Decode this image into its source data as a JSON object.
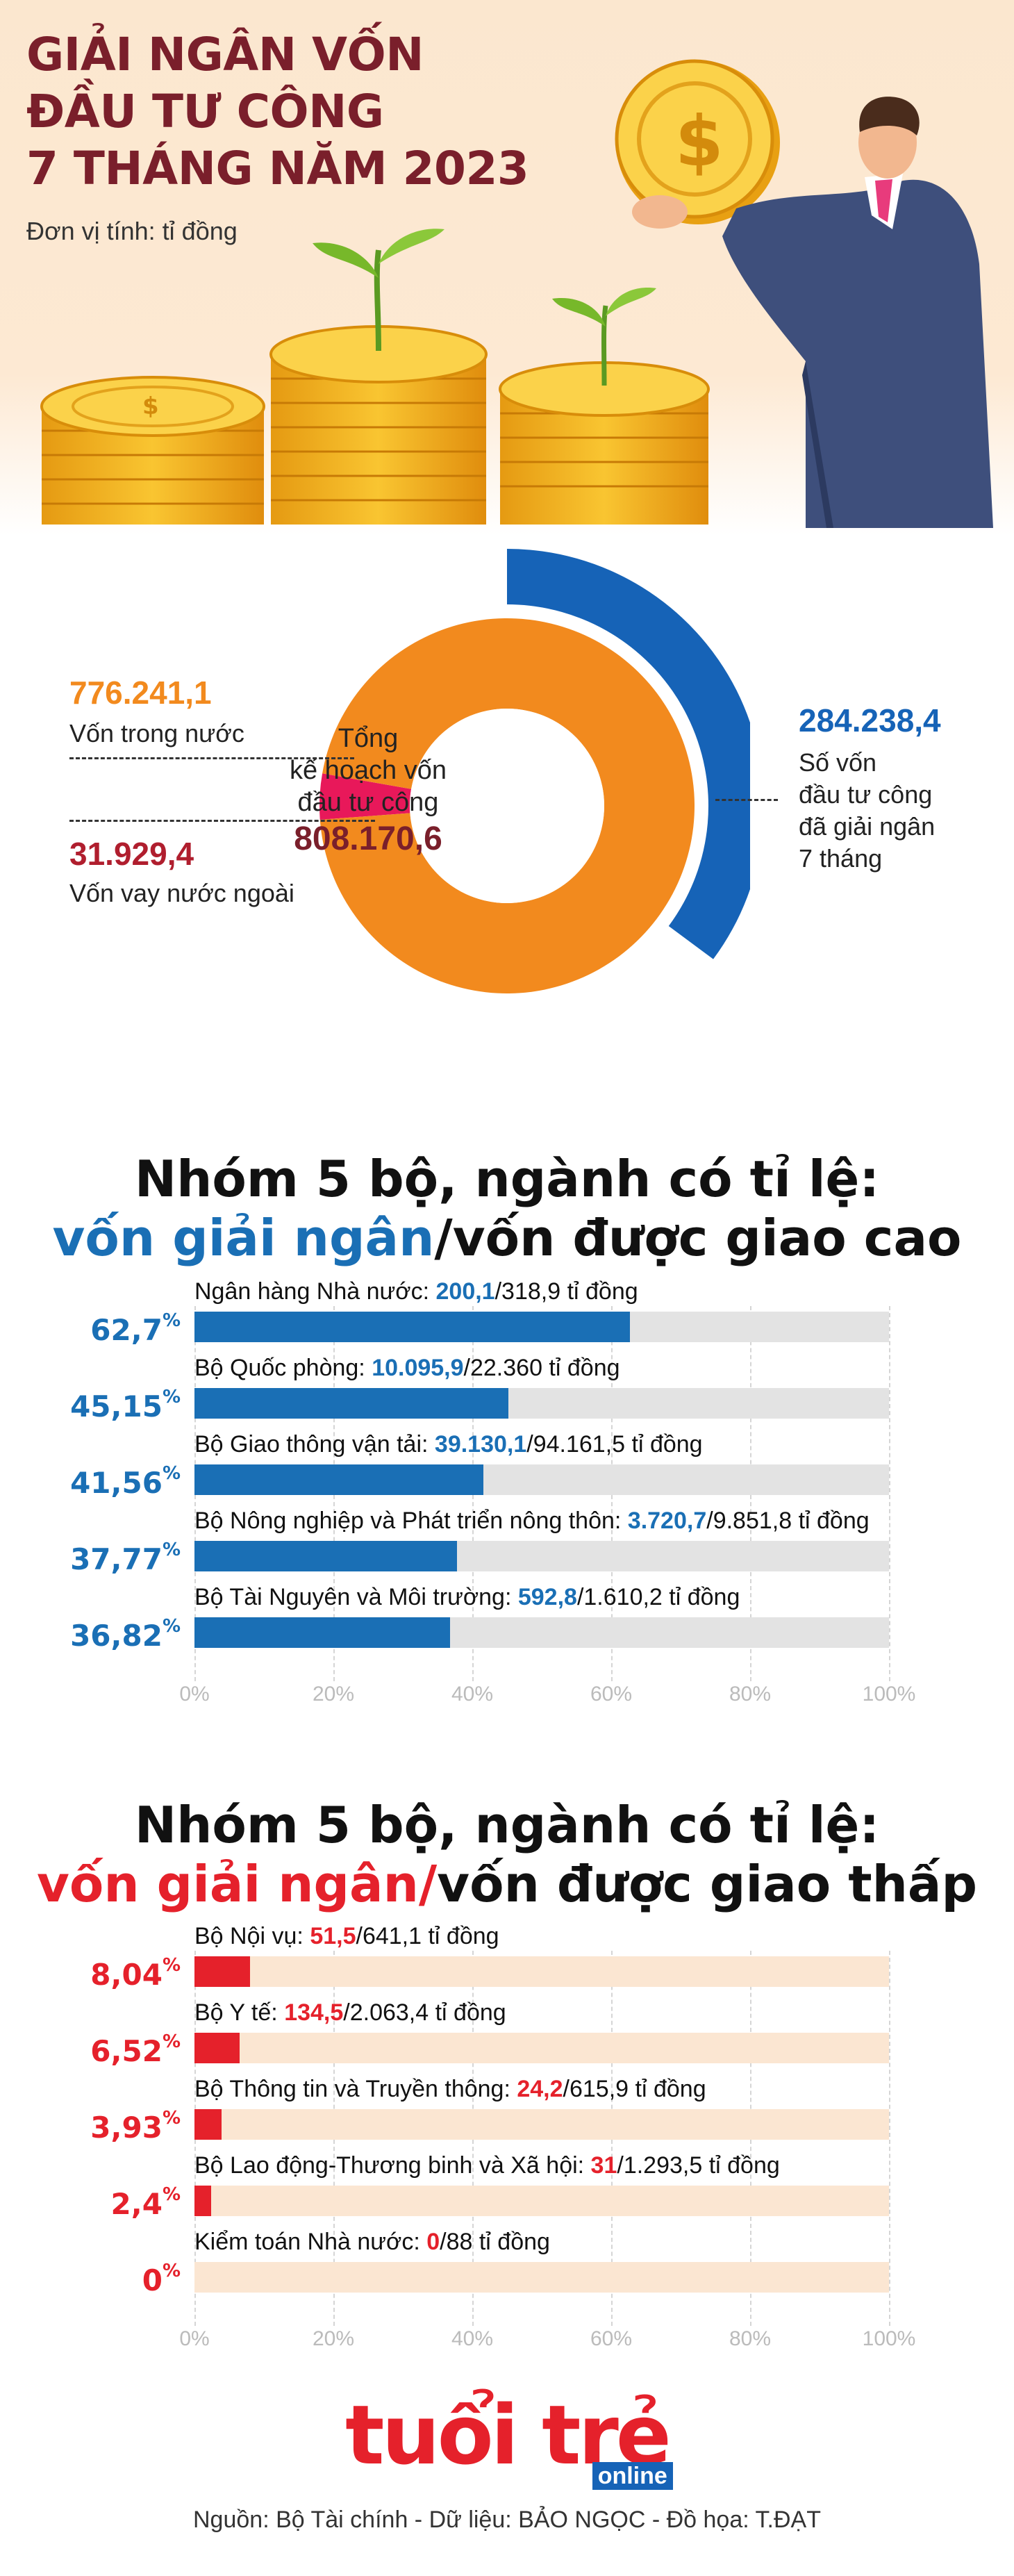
{
  "header": {
    "title_lines": [
      "GIẢI NGÂN VỐN",
      "ĐẦU TƯ CÔNG",
      "7 THÁNG NĂM 2023"
    ],
    "unit": "Đơn vị tính: tỉ đồng"
  },
  "donut": {
    "center_lines": [
      "Tổng",
      "kế hoạch vốn",
      "đầu tư công"
    ],
    "center_value": "808.170,6",
    "domestic": {
      "value": "776.241,1",
      "label": "Vốn trong nước",
      "color": "#f28a1e"
    },
    "foreign": {
      "value": "31.929,4",
      "label": "Vốn vay nước ngoài",
      "color": "#e8185a"
    },
    "disbursed": {
      "value": "284.238,4",
      "label_lines": [
        "Số vốn",
        "đầu tư công",
        "đã giải ngân",
        "7 tháng"
      ],
      "color": "#1663b7"
    }
  },
  "chart_data": [
    {
      "type": "bar",
      "title_line1": "Nhóm 5 bộ, ngành có tỉ lệ:",
      "title_line2_highlight": "vốn giải ngân",
      "title_line2_rest": "/vốn được giao cao",
      "highlight_color": "#1a6fb5",
      "bar_color": "#1a6fb5",
      "track_color": "#e3e3e3",
      "xlim": [
        0,
        100
      ],
      "ticks": [
        "0%",
        "20%",
        "40%",
        "60%",
        "80%",
        "100%"
      ],
      "rows": [
        {
          "label": "Ngân hàng Nhà nước: ",
          "disbursed": "200,1",
          "rest": "/318,9 tỉ đồng",
          "pct": 62.7,
          "pct_main": "62,7",
          "pct_sup": "%"
        },
        {
          "label": "Bộ Quốc phòng: ",
          "disbursed": "10.095,9",
          "rest": "/22.360 tỉ đồng",
          "pct": 45.15,
          "pct_main": "45,15",
          "pct_sup": "%"
        },
        {
          "label": "Bộ Giao thông vận tải: ",
          "disbursed": "39.130,1",
          "rest": "/94.161,5 tỉ đồng",
          "pct": 41.56,
          "pct_main": "41,56",
          "pct_sup": "%"
        },
        {
          "label": "Bộ Nông nghiệp và Phát triển nông thôn: ",
          "disbursed": "3.720,7",
          "rest": "/9.851,8 tỉ đồng",
          "pct": 37.77,
          "pct_main": "37,77",
          "pct_sup": "%"
        },
        {
          "label": "Bộ Tài Nguyên và Môi trường: ",
          "disbursed": "592,8",
          "rest": "/1.610,2 tỉ đồng",
          "pct": 36.82,
          "pct_main": "36,82",
          "pct_sup": "%"
        }
      ]
    },
    {
      "type": "bar",
      "title_line1": "Nhóm 5 bộ, ngành có tỉ lệ:",
      "title_line2_highlight": "vốn giải ngân/",
      "title_line2_rest": "vốn được giao thấp",
      "highlight_color": "#e5212b",
      "bar_color": "#e5212b",
      "track_color": "#fbe6d2",
      "xlim": [
        0,
        100
      ],
      "ticks": [
        "0%",
        "20%",
        "40%",
        "60%",
        "80%",
        "100%"
      ],
      "rows": [
        {
          "label": "Bộ Nội vụ: ",
          "disbursed": "51,5",
          "rest": "/641,1 tỉ đồng",
          "pct": 8.04,
          "pct_main": "8,04",
          "pct_sup": "%"
        },
        {
          "label": "Bộ Y tế: ",
          "disbursed": "134,5",
          "rest": "/2.063,4 tỉ đồng",
          "pct": 6.52,
          "pct_main": "6,52",
          "pct_sup": "%"
        },
        {
          "label": "Bộ Thông tin và Truyền thông: ",
          "disbursed": "24,2",
          "rest": "/615,9 tỉ đồng",
          "pct": 3.93,
          "pct_main": "3,93",
          "pct_sup": "%"
        },
        {
          "label": "Bộ Lao động-Thương binh và Xã hội: ",
          "disbursed": "31",
          "rest": "/1.293,5 tỉ đồng",
          "pct": 2.4,
          "pct_main": "2,4",
          "pct_sup": "%"
        },
        {
          "label": "Kiểm toán Nhà nước: ",
          "disbursed": "0",
          "rest": "/88 tỉ đồng",
          "pct": 0,
          "pct_main": "0",
          "pct_sup": "%"
        }
      ]
    }
  ],
  "footer": {
    "logo_main": "tuổi trẻ",
    "logo_sub": "online",
    "source": "Nguồn: Bộ Tài chính - Dữ liệu: BẢO NGỌC - Đồ họa: T.ĐẠT"
  }
}
